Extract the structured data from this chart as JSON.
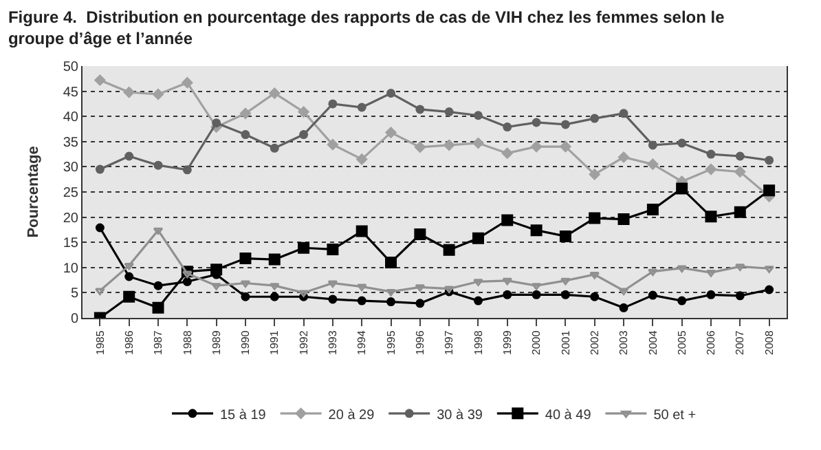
{
  "chart_data": {
    "type": "line",
    "title": "Figure 4.  Distribution en pourcentage des rapports de cas de VIH chez les femmes selon le groupe d’âge et l’année",
    "ylabel": "Pourcentage",
    "categories": [
      "1985",
      "1986",
      "1987",
      "1988",
      "1989",
      "1990",
      "1991",
      "1992",
      "1993",
      "1994",
      "1995",
      "1996",
      "1997",
      "1998",
      "1999",
      "2000",
      "2001",
      "2002",
      "2003",
      "2004",
      "2005",
      "2006",
      "2007",
      "2008"
    ],
    "series": [
      {
        "name": "15 à 19",
        "color": "#000000",
        "marker": "circle",
        "values": [
          17.9,
          8.2,
          6.4,
          7.2,
          8.6,
          4.2,
          4.2,
          4.2,
          3.7,
          3.4,
          3.2,
          2.9,
          5.2,
          3.4,
          4.6,
          4.6,
          4.6,
          4.2,
          2.0,
          4.5,
          3.4,
          4.6,
          4.4,
          5.6
        ]
      },
      {
        "name": "20 à 29",
        "color": "#a0a0a0",
        "marker": "diamond",
        "values": [
          47.2,
          44.8,
          44.4,
          46.7,
          37.9,
          40.6,
          44.6,
          40.9,
          34.4,
          31.5,
          36.8,
          33.9,
          34.3,
          34.7,
          32.7,
          34.0,
          34.0,
          28.5,
          31.9,
          30.5,
          27.1,
          29.5,
          29.0,
          24.1
        ]
      },
      {
        "name": "30 à 39",
        "color": "#606060",
        "marker": "circle",
        "values": [
          29.5,
          32.1,
          30.3,
          29.4,
          38.7,
          36.4,
          33.7,
          36.4,
          42.5,
          41.8,
          44.6,
          41.4,
          40.9,
          40.2,
          37.9,
          38.8,
          38.4,
          39.6,
          40.6,
          34.3,
          34.7,
          32.5,
          32.1,
          31.3
        ]
      },
      {
        "name": "40 à 49",
        "color": "#000000",
        "marker": "square",
        "values": [
          0,
          4.2,
          2.0,
          9.2,
          9.6,
          11.8,
          11.6,
          13.9,
          13.6,
          17.2,
          11.0,
          16.6,
          13.5,
          15.8,
          19.4,
          17.4,
          16.2,
          19.8,
          19.6,
          21.5,
          25.7,
          20.1,
          21.0,
          25.3
        ]
      },
      {
        "name": "50 et +",
        "color": "#909090",
        "marker": "triangle",
        "values": [
          5.4,
          10.4,
          17.4,
          8.8,
          6.4,
          6.9,
          6.4,
          5.0,
          6.9,
          6.2,
          5.2,
          6.1,
          5.8,
          7.2,
          7.4,
          6.4,
          7.4,
          8.6,
          5.4,
          9.2,
          9.9,
          9.0,
          10.2,
          9.8
        ]
      }
    ],
    "ylim": [
      0,
      50
    ],
    "yticks": [
      0,
      5,
      10,
      15,
      20,
      25,
      30,
      35,
      40,
      45,
      50
    ],
    "grid": "y",
    "legend": "bottom",
    "line_style": "solid"
  }
}
